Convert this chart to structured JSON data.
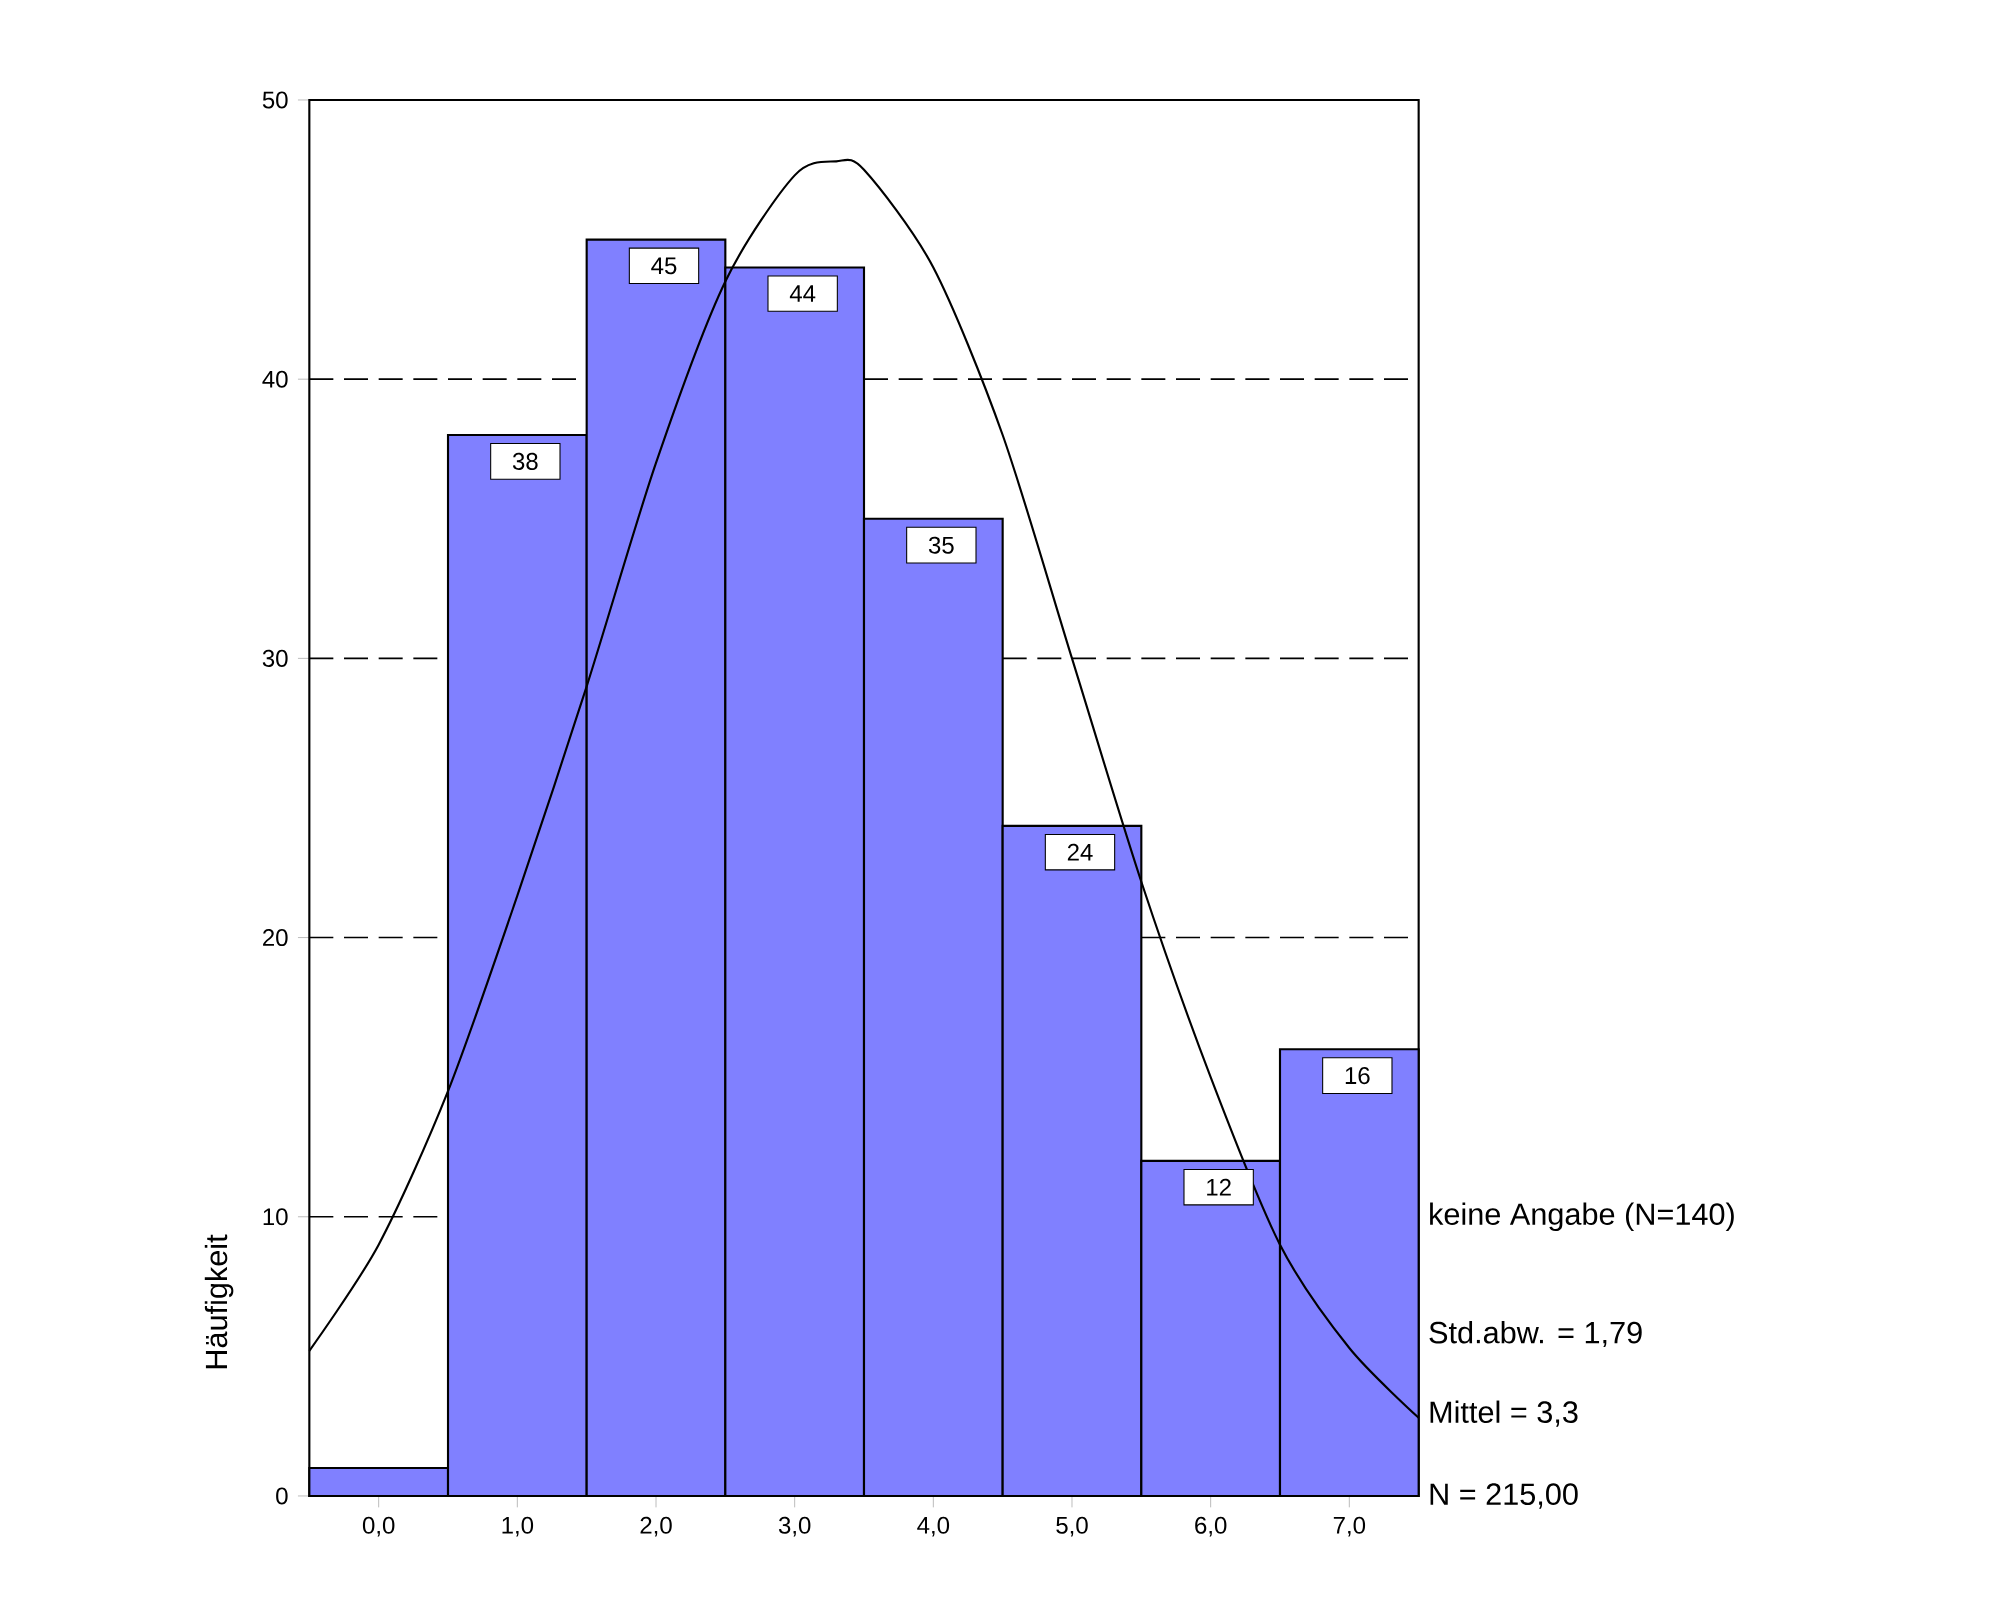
{
  "chart_data": {
    "type": "histogram",
    "ylabel": "Häufigkeit",
    "bins": [
      -0.5,
      0.5,
      1.5,
      2.5,
      3.5,
      4.5,
      5.5,
      6.5,
      7.5
    ],
    "values": [
      1,
      38,
      45,
      44,
      35,
      24,
      12,
      16
    ],
    "value_labels": [
      null,
      "38",
      "45",
      "44",
      "35",
      "24",
      "12",
      "16"
    ],
    "color": "#8080ff",
    "series": [
      {
        "type": "line",
        "color": "#000000",
        "x": [
          -0.5,
          0,
          0.5,
          1,
          1.5,
          2,
          2.5,
          3,
          3.3,
          3.5,
          4,
          4.5,
          5,
          5.5,
          6,
          6.5,
          7,
          7.5
        ],
        "values": [
          5.2,
          9,
          14.5,
          21.5,
          29,
          37,
          43.5,
          47.3,
          47.8,
          47.5,
          44,
          38,
          30,
          22,
          15,
          9,
          5.3,
          2.8
        ]
      }
    ],
    "xlim": [
      -0.5,
      7.5
    ],
    "xticks": [
      {
        "value": 0,
        "label": "0,0"
      },
      {
        "value": 1,
        "label": "1,0"
      },
      {
        "value": 2,
        "label": "2,0"
      },
      {
        "value": 3,
        "label": "3,0"
      },
      {
        "value": 4,
        "label": "4,0"
      },
      {
        "value": 5,
        "label": "5,0"
      },
      {
        "value": 6,
        "label": "6,0"
      },
      {
        "value": 7,
        "label": "7,0"
      }
    ],
    "ylim": [
      0,
      50
    ],
    "yticks": [
      0,
      10,
      20,
      30,
      40,
      50
    ],
    "grid": "y",
    "annotations": [
      "keine Angabe (N=140)",
      "Std.abw. = 1,79",
      "Mittel = 3,3",
      "N = 215,00"
    ]
  }
}
